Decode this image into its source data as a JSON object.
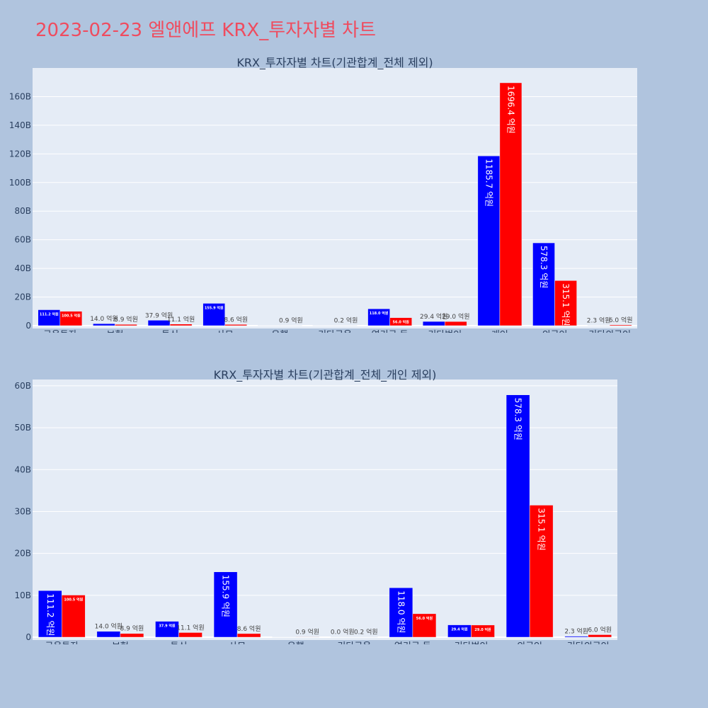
{
  "page": {
    "title": "2023-02-23 엘앤에프 KRX_투자자별 차트"
  },
  "colors": {
    "buy": "#0000ff",
    "sell": "#ff0000",
    "title": "#ef4c5f",
    "plot_bg": "#e5ecf6",
    "page_bg": "#b0c4de"
  },
  "chart_data": [
    {
      "type": "bar",
      "title": "KRX_투자자별 차트(기관합계_전체 제외)",
      "categories": [
        "금융투자",
        "보험",
        "투신",
        "사모",
        "은행",
        "기타금융",
        "연기금 등",
        "기타법인",
        "개인",
        "외국인",
        "기타외국인"
      ],
      "series": [
        {
          "values": [
            11.12,
            1.4,
            3.79,
            15.59,
            0,
            0,
            11.8,
            2.94,
            118.57,
            57.83,
            0.23
          ],
          "labels": [
            "111.2 억원",
            "14.0 억원",
            "37.9 억원",
            "155.9 억원",
            "",
            "",
            "118.0 억원",
            "29.4 억원",
            "1185.7 억원",
            "578.3 억원",
            "2.3 억원"
          ]
        },
        {
          "values": [
            10.05,
            0.89,
            1.11,
            0.86,
            0.09,
            0.02,
            5.6,
            2.9,
            169.64,
            31.51,
            0.6
          ],
          "labels": [
            "100.5 억원",
            "8.9 억원",
            "11.1 억원",
            "8.6 억원",
            "0.9 억원",
            "0.2 억원",
            "56.0 억원",
            "29.0 억원",
            "1696.4 억원",
            "315.1 억원",
            "6.0 억원"
          ]
        }
      ],
      "ylim": [
        0,
        180
      ],
      "yticks": [
        0,
        20,
        40,
        60,
        80,
        100,
        120,
        140,
        160
      ],
      "ytick_labels": [
        "0",
        "20B",
        "40B",
        "60B",
        "80B",
        "100B",
        "120B",
        "140B",
        "160B"
      ]
    },
    {
      "type": "bar",
      "title": "KRX_투자자별 차트(기관합계_전체_개인 제외)",
      "categories": [
        "금융투자",
        "보험",
        "투신",
        "사모",
        "은행",
        "기타금융",
        "연기금 등",
        "기타법인",
        "외국인",
        "기타외국인"
      ],
      "series": [
        {
          "values": [
            11.12,
            1.4,
            3.79,
            15.59,
            0,
            0,
            11.8,
            2.94,
            57.83,
            0.23
          ],
          "labels": [
            "111.2 억원",
            "14.0 억원",
            "37.9 억원",
            "155.9 억원",
            "",
            "0.0 억원",
            "118.0 억원",
            "29.4 억원",
            "578.3 억원",
            "2.3 억원"
          ]
        },
        {
          "values": [
            10.05,
            0.89,
            1.11,
            0.86,
            0.09,
            0.02,
            5.6,
            2.9,
            31.51,
            0.6
          ],
          "labels": [
            "100.5 억원",
            "8.9 억원",
            "11.1 억원",
            "8.6 억원",
            "0.9 억원",
            "0.2 억원",
            "56.0 억원",
            "29.0 억원",
            "315.1 억원",
            "6.0 억원"
          ]
        }
      ],
      "ylim": [
        0,
        61.5
      ],
      "yticks": [
        0,
        10,
        20,
        30,
        40,
        50,
        60
      ],
      "ytick_labels": [
        "0",
        "10B",
        "20B",
        "30B",
        "40B",
        "50B",
        "60B"
      ]
    }
  ]
}
